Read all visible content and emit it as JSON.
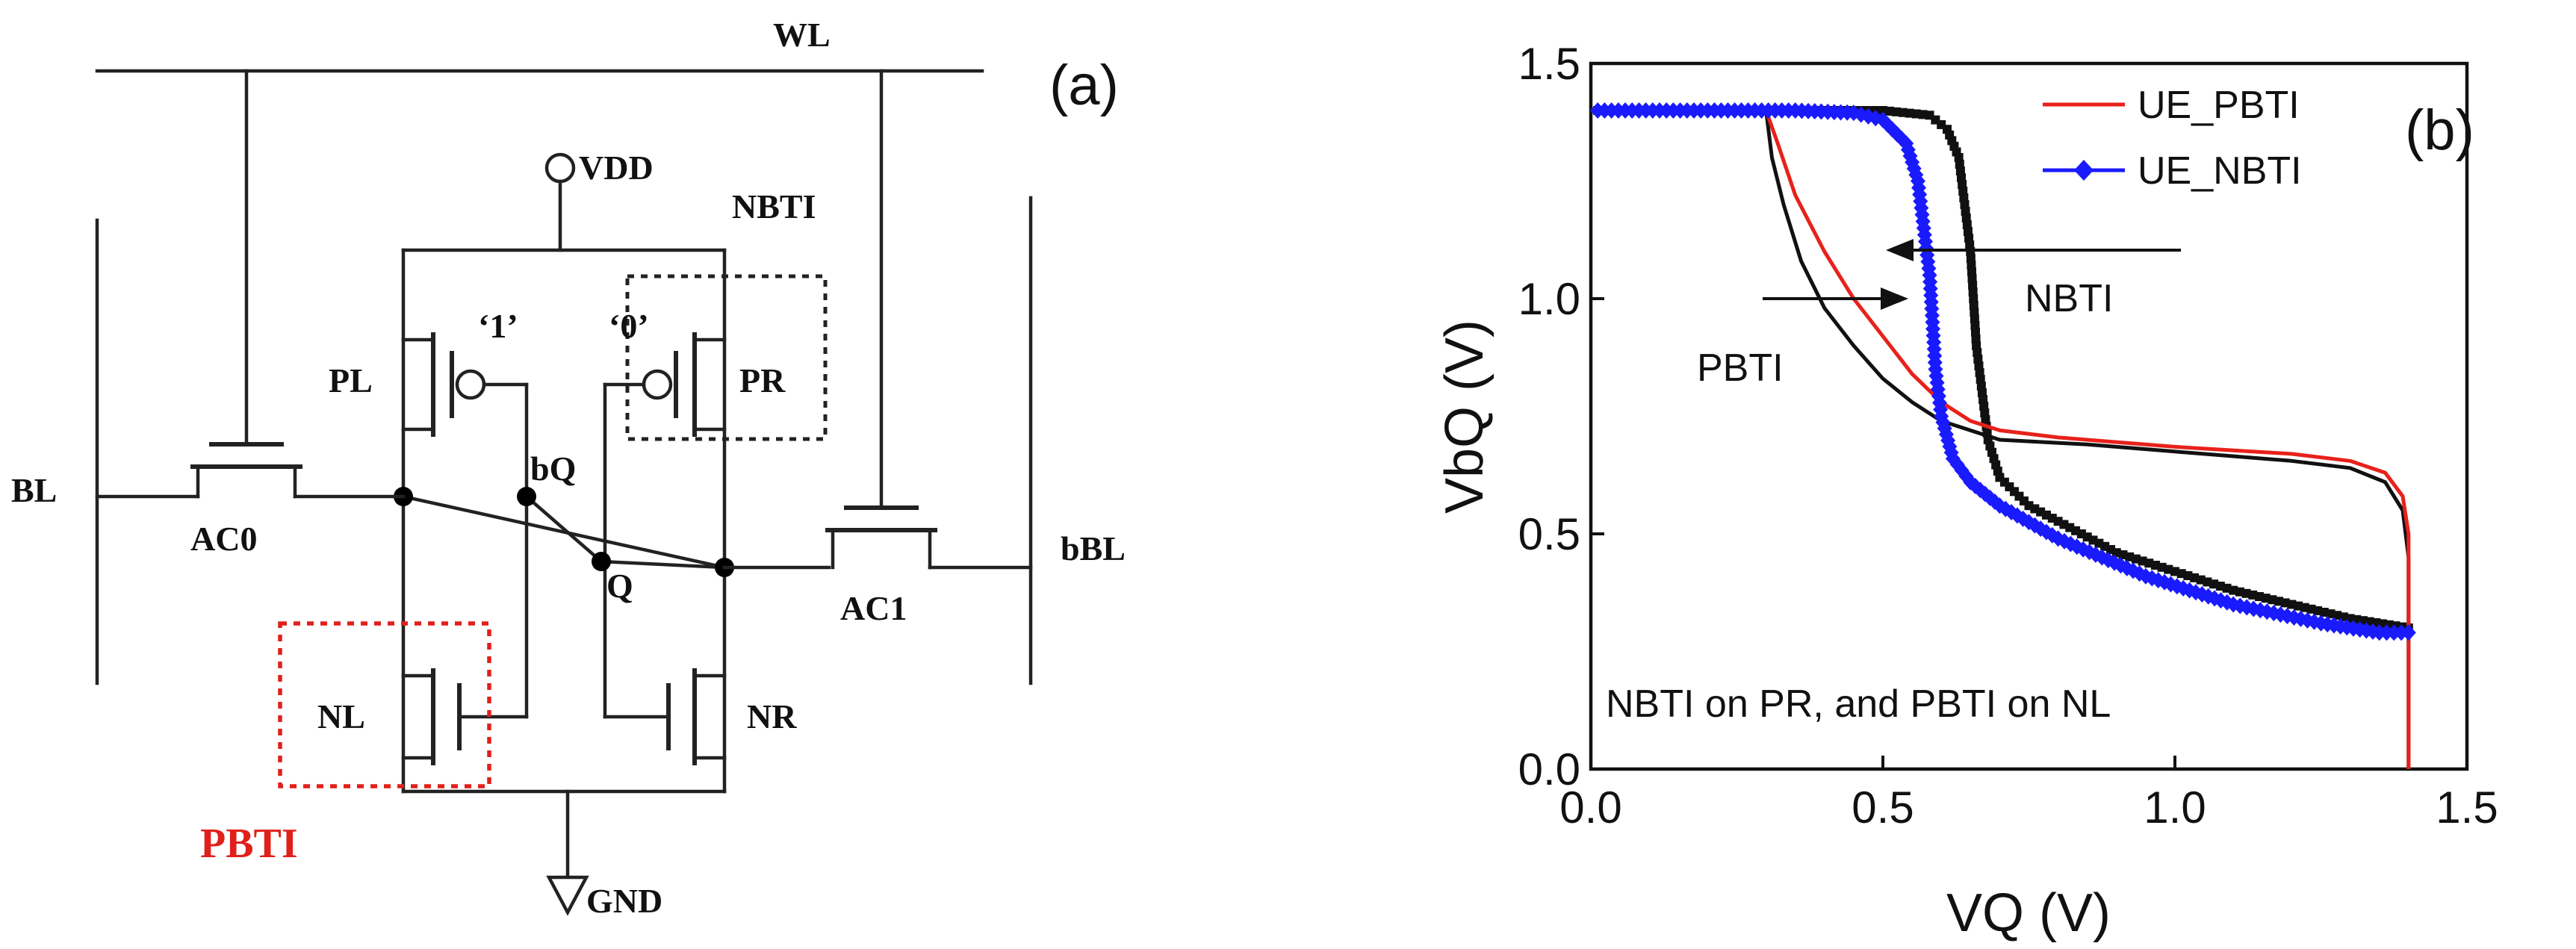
{
  "panel_a": {
    "tag": "(a)",
    "labels": {
      "wl": "WL",
      "vdd": "VDD",
      "gnd": "GND",
      "bl": "BL",
      "bbl": "bBL",
      "ac0": "AC0",
      "ac1": "AC1",
      "pl": "PL",
      "pr": "PR",
      "nl": "NL",
      "nr": "NR",
      "q": "Q",
      "bq": "bQ",
      "one": "‘1’",
      "zero": "‘0’",
      "nbti": "NBTI",
      "pbti": "PBTI"
    },
    "colors": {
      "pbti_box": "#e0201b",
      "nbti_box": "#222222",
      "pbti_text": "#e0201b"
    }
  },
  "panel_b": {
    "tag": "(b)",
    "annotations": {
      "nbti": "NBTI",
      "pbti": "PBTI",
      "note": "NBTI on PR, and PBTI on NL"
    }
  },
  "chart_data": {
    "type": "line",
    "xlabel": "VQ (V)",
    "ylabel": "VbQ (V)",
    "xlim": [
      0.0,
      1.5
    ],
    "ylim": [
      0.0,
      1.5
    ],
    "xticks": [
      0.0,
      0.5,
      1.0,
      1.5
    ],
    "yticks": [
      0.0,
      0.5,
      1.0,
      1.5
    ],
    "xtick_labels": [
      "0.0",
      "0.5",
      "1.0",
      "1.5"
    ],
    "ytick_labels": [
      "0.0",
      "0.5",
      "1.0",
      "1.5"
    ],
    "legend_position": "top-right",
    "series": [
      {
        "name": "UE_PBTI",
        "color": "#e8211b",
        "marker": "none",
        "x": [
          0.0,
          0.3,
          0.32,
          0.35,
          0.4,
          0.45,
          0.5,
          0.55,
          0.6,
          0.65,
          0.7,
          0.8,
          1.0,
          1.2,
          1.3,
          1.36,
          1.39,
          1.4,
          1.4,
          1.4,
          1.4
        ],
        "y": [
          1.4,
          1.4,
          1.33,
          1.22,
          1.1,
          1.0,
          0.92,
          0.84,
          0.78,
          0.74,
          0.72,
          0.705,
          0.685,
          0.67,
          0.655,
          0.63,
          0.58,
          0.5,
          0.35,
          0.15,
          0.0
        ]
      },
      {
        "name": "UE_NBTI",
        "color": "#1a1aff",
        "marker": "diamond",
        "x": [
          1.4,
          1.35,
          1.25,
          1.1,
          0.95,
          0.8,
          0.7,
          0.65,
          0.62,
          0.6,
          0.59,
          0.585,
          0.58,
          0.57,
          0.56,
          0.54,
          0.5,
          0.45,
          0.35,
          0.2,
          0.0
        ],
        "y": [
          0.29,
          0.29,
          0.31,
          0.35,
          0.41,
          0.49,
          0.56,
          0.61,
          0.66,
          0.75,
          0.85,
          0.95,
          1.05,
          1.15,
          1.25,
          1.33,
          1.38,
          1.395,
          1.4,
          1.4,
          1.4
        ]
      },
      {
        "color": "#111111",
        "marker": "none",
        "x": [
          0.0,
          0.3,
          0.31,
          0.33,
          0.36,
          0.4,
          0.45,
          0.5,
          0.55,
          0.6,
          0.7,
          0.85,
          1.0,
          1.2,
          1.3,
          1.36,
          1.39,
          1.4,
          1.4,
          1.4
        ],
        "y": [
          1.4,
          1.4,
          1.3,
          1.2,
          1.08,
          0.98,
          0.9,
          0.83,
          0.78,
          0.74,
          0.7,
          0.69,
          0.675,
          0.655,
          0.64,
          0.61,
          0.55,
          0.45,
          0.2,
          0.0
        ]
      },
      {
        "color": "#111111",
        "marker": "square",
        "x": [
          1.4,
          1.3,
          1.1,
          0.9,
          0.75,
          0.7,
          0.68,
          0.67,
          0.66,
          0.655,
          0.65,
          0.64,
          0.63,
          0.61,
          0.58,
          0.5,
          0.3,
          0.0
        ],
        "y": [
          0.3,
          0.32,
          0.38,
          0.46,
          0.56,
          0.62,
          0.7,
          0.8,
          0.9,
          1.0,
          1.1,
          1.2,
          1.3,
          1.36,
          1.39,
          1.4,
          1.4,
          1.4
        ]
      }
    ]
  }
}
